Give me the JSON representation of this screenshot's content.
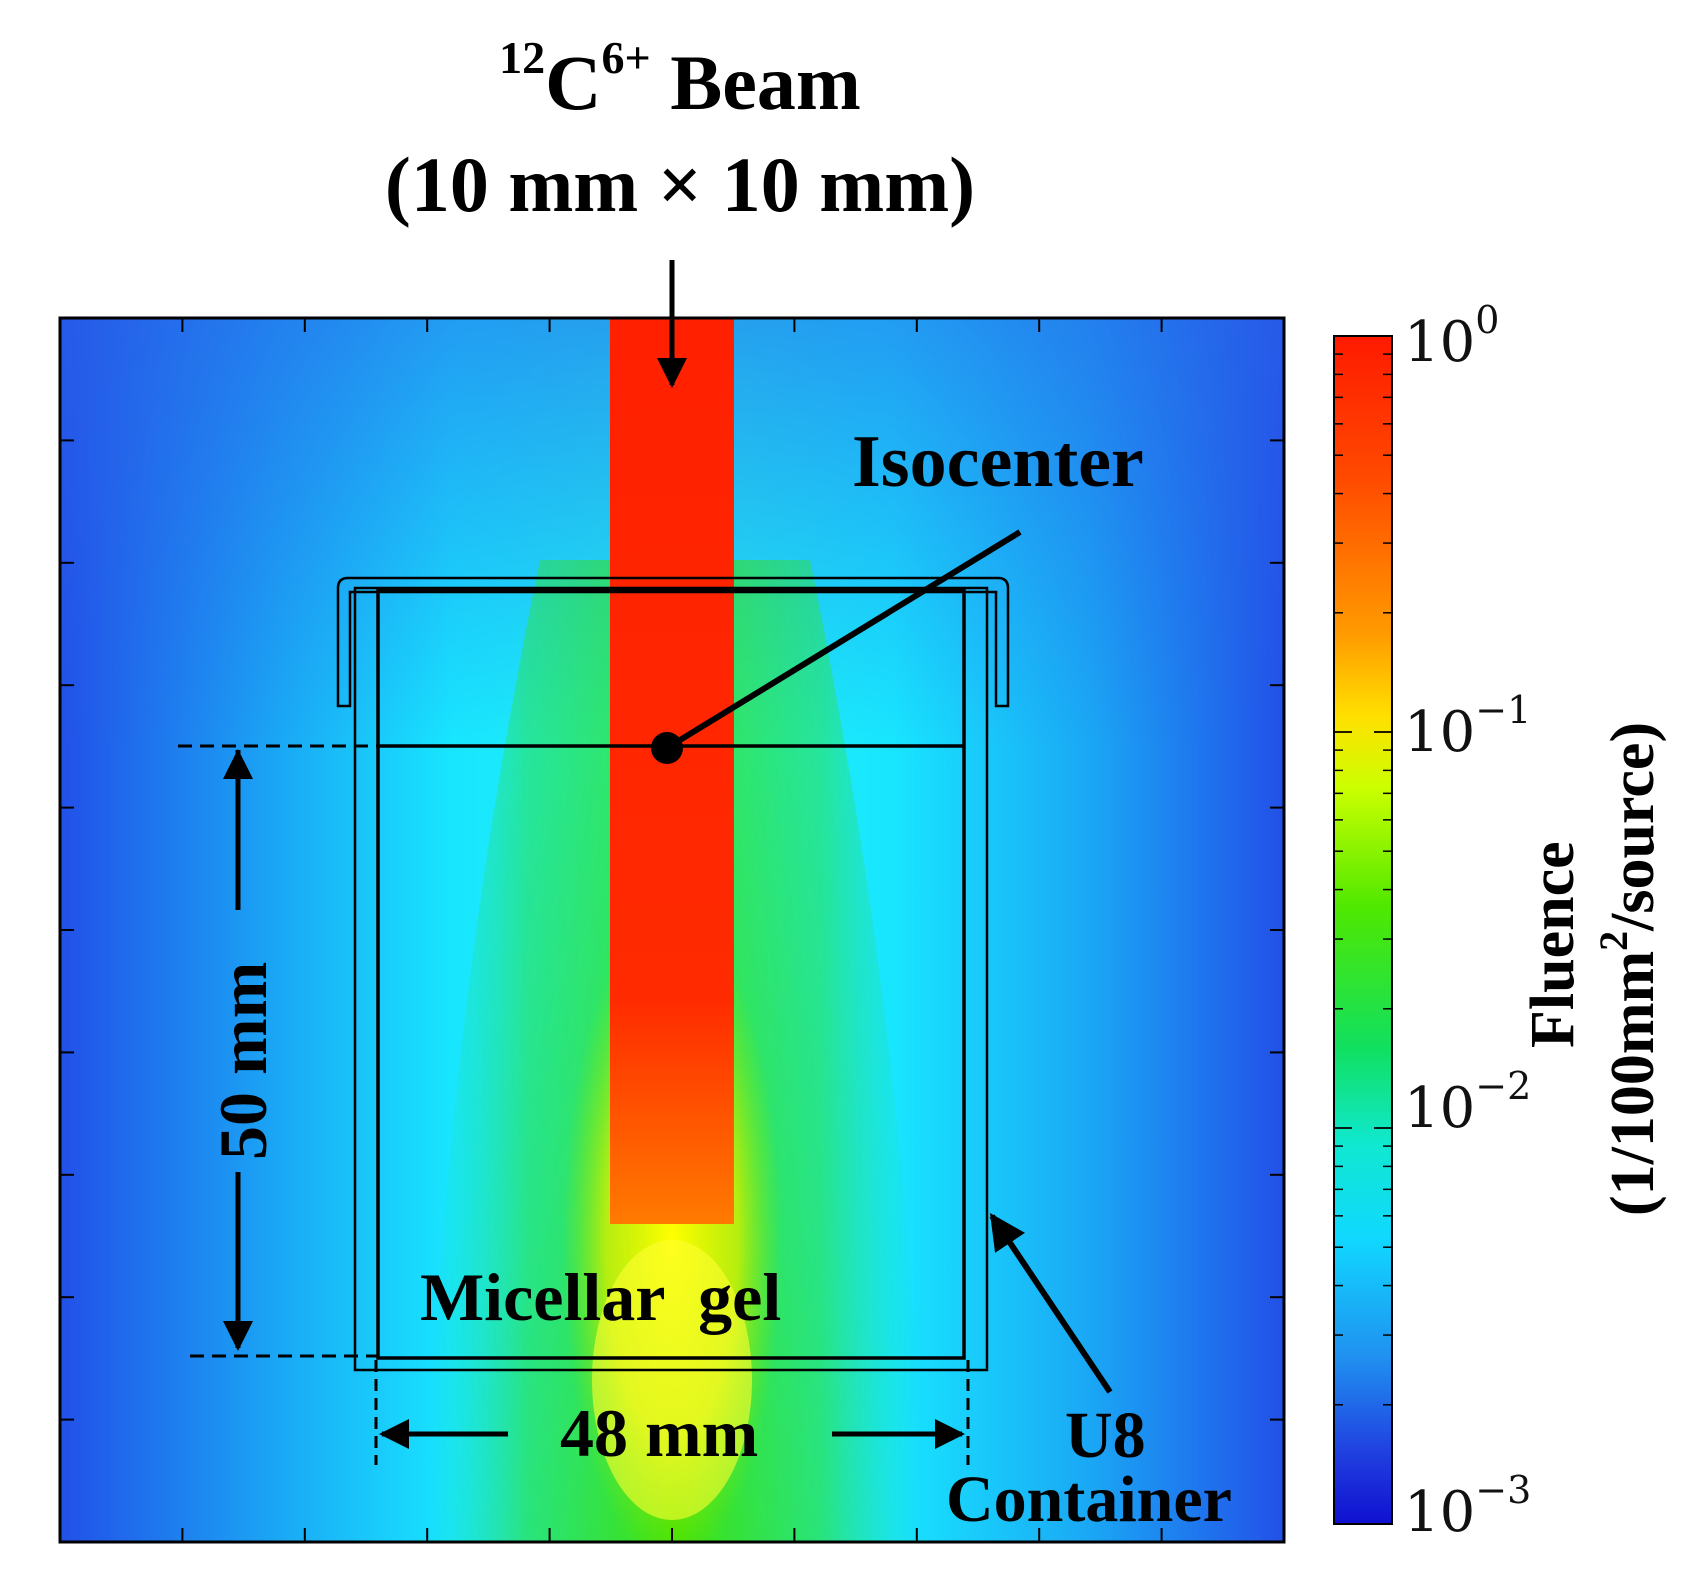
{
  "title": {
    "ion_mass_number": "12",
    "ion_symbol": "C",
    "ion_charge": "6+",
    "beam_word": "Beam",
    "beam_size": "(10 mm × 10 mm)"
  },
  "labels": {
    "isocenter": "Isocenter",
    "micellar_gel": "Micellar  gel",
    "container_line1": "U8",
    "container_line2": "Container",
    "height_dim": "50 mm",
    "width_dim": "48 mm"
  },
  "colorbar": {
    "title_line1": "Fluence",
    "title_line2_prefix": "(1/100mm",
    "title_line2_sup": "2",
    "title_line2_suffix": "/source)",
    "ticks": [
      {
        "base": "10",
        "exp": "0",
        "value": 1.0
      },
      {
        "base": "10",
        "exp": "−1",
        "value": 0.1
      },
      {
        "base": "10",
        "exp": "−2",
        "value": 0.01
      },
      {
        "base": "10",
        "exp": "−3",
        "value": 0.001
      }
    ],
    "range": [
      0.001,
      1.0
    ],
    "scale": "log"
  },
  "colors": {
    "beam": "#ff2a00",
    "background_low": "#1e40e6",
    "background_mid": "#14e6ff",
    "mid_green": "#2ee000",
    "high_yellow": "#ffff00",
    "high_red": "#ff2000",
    "outline": "#000000"
  }
}
